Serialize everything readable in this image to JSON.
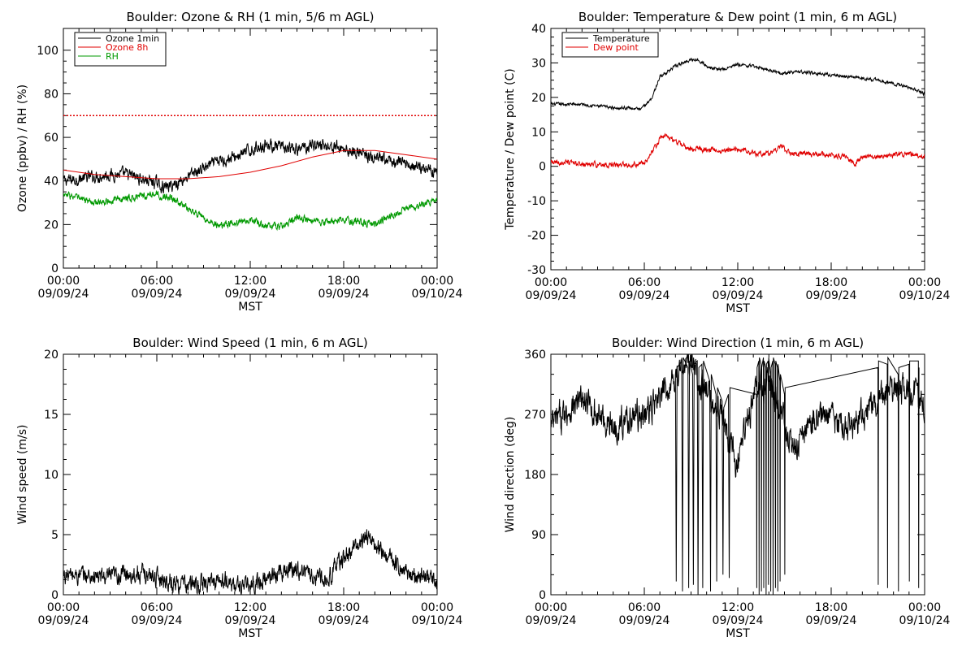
{
  "chart_data": [
    {
      "type": "line",
      "title": "Boulder: Ozone & RH (1 min, 5/6 m AGL)",
      "xlabel": "MST",
      "ylabel": "Ozone (ppbv) / RH (%)",
      "xlim": [
        0,
        24
      ],
      "ylim": [
        0,
        110
      ],
      "yticks": [
        0,
        20,
        40,
        60,
        80,
        100
      ],
      "xticks": [
        {
          "x": 0,
          "time": "00:00",
          "date": "09/09/24"
        },
        {
          "x": 6,
          "time": "06:00",
          "date": "09/09/24"
        },
        {
          "x": 12,
          "time": "12:00",
          "date": "09/09/24"
        },
        {
          "x": 18,
          "time": "18:00",
          "date": "09/09/24"
        },
        {
          "x": 24,
          "time": "00:00",
          "date": "09/10/24"
        }
      ],
      "legend": "top-left",
      "hline": {
        "y": 70,
        "color": "#e00000",
        "style": "dotted"
      },
      "series": [
        {
          "name": "Ozone 1min",
          "color": "#000000",
          "noise": 2.2,
          "x": [
            0,
            1,
            2,
            3,
            4,
            5,
            6,
            6.5,
            7,
            8,
            9,
            10,
            11,
            12,
            13,
            14,
            15,
            16,
            17,
            18,
            19,
            20,
            21,
            22,
            23,
            24
          ],
          "y": [
            40,
            41,
            42,
            43,
            43,
            41,
            39,
            37,
            38,
            42,
            46,
            49,
            51,
            54,
            57,
            55,
            54,
            57,
            56,
            55,
            53,
            50,
            49,
            48,
            46,
            45
          ]
        },
        {
          "name": "Ozone 8h",
          "color": "#e00000",
          "noise": 0,
          "x": [
            0,
            2,
            4,
            6,
            8,
            10,
            12,
            14,
            16,
            18,
            20,
            22,
            24
          ],
          "y": [
            45,
            43,
            42,
            41,
            41,
            42,
            44,
            47,
            51,
            54,
            54,
            52,
            50
          ]
        },
        {
          "name": "RH",
          "color": "#009900",
          "noise": 1.3,
          "x": [
            0,
            1,
            2,
            3,
            4,
            5,
            6,
            7,
            8,
            9,
            10,
            11,
            12,
            13,
            14,
            15,
            16,
            17,
            18,
            19,
            20,
            21,
            22,
            23,
            24
          ],
          "y": [
            34,
            32,
            30,
            31,
            32,
            33,
            34,
            32,
            27,
            23,
            19,
            21,
            22,
            20,
            19,
            23,
            22,
            21,
            22,
            21,
            20,
            24,
            27,
            29,
            31
          ]
        }
      ]
    },
    {
      "type": "line",
      "title": "Boulder: Temperature & Dew point (1 min, 6 m AGL)",
      "xlabel": "MST",
      "ylabel": "Temperature / Dew point (C)",
      "xlim": [
        0,
        24
      ],
      "ylim": [
        -30,
        40
      ],
      "yticks": [
        -30,
        -20,
        -10,
        0,
        10,
        20,
        30,
        40
      ],
      "xticks": [
        {
          "x": 0,
          "time": "00:00",
          "date": "09/09/24"
        },
        {
          "x": 6,
          "time": "06:00",
          "date": "09/09/24"
        },
        {
          "x": 12,
          "time": "12:00",
          "date": "09/09/24"
        },
        {
          "x": 18,
          "time": "18:00",
          "date": "09/09/24"
        },
        {
          "x": 24,
          "time": "00:00",
          "date": "09/10/24"
        }
      ],
      "legend": "top-left",
      "series": [
        {
          "name": "Temperature",
          "color": "#000000",
          "noise": 0.35,
          "x": [
            0,
            1,
            2,
            3,
            4,
            5,
            5.8,
            6.5,
            7,
            8,
            9,
            9.5,
            10,
            11,
            12,
            13,
            14,
            15,
            16,
            17,
            18,
            19,
            20,
            21,
            22,
            23,
            24
          ],
          "y": [
            18,
            18,
            18,
            17.5,
            17,
            17,
            16.5,
            20,
            26,
            29,
            31,
            31,
            29,
            28,
            29.5,
            29,
            28,
            27,
            27.5,
            27,
            26.5,
            26,
            25.5,
            25,
            24,
            23,
            21
          ]
        },
        {
          "name": "Dew point",
          "color": "#e00000",
          "noise": 0.6,
          "x": [
            0,
            1,
            2,
            3,
            4,
            5,
            6,
            6.5,
            7,
            7.5,
            8,
            9,
            10,
            11,
            12,
            13,
            14,
            14.8,
            15.2,
            16,
            17,
            18,
            19,
            19.5,
            20,
            21,
            22,
            23,
            24
          ],
          "y": [
            1,
            1,
            0.5,
            0.5,
            0.5,
            0.5,
            1,
            4,
            8,
            9,
            7,
            5,
            5,
            4.5,
            5,
            4,
            3.5,
            6,
            4,
            3.5,
            3.5,
            3.5,
            2.5,
            1,
            2.5,
            3,
            3.5,
            3.5,
            3
          ]
        }
      ]
    },
    {
      "type": "line",
      "title": "Boulder: Wind Speed (1 min, 6 m AGL)",
      "xlabel": "MST",
      "ylabel": "Wind speed (m/s)",
      "xlim": [
        0,
        24
      ],
      "ylim": [
        0,
        20
      ],
      "yticks": [
        0,
        5,
        10,
        15,
        20
      ],
      "xticks": [
        {
          "x": 0,
          "time": "00:00",
          "date": "09/09/24"
        },
        {
          "x": 6,
          "time": "06:00",
          "date": "09/09/24"
        },
        {
          "x": 12,
          "time": "12:00",
          "date": "09/09/24"
        },
        {
          "x": 18,
          "time": "18:00",
          "date": "09/09/24"
        },
        {
          "x": 24,
          "time": "00:00",
          "date": "09/10/24"
        }
      ],
      "series": [
        {
          "name": "",
          "color": "#000000",
          "noise": 0.6,
          "x": [
            0,
            1,
            2,
            3,
            4,
            5,
            6,
            7,
            8,
            9,
            10,
            11,
            12,
            13,
            14,
            15,
            16,
            17,
            17.5,
            18,
            18.5,
            19,
            19.5,
            20,
            21,
            22,
            23,
            24
          ],
          "y": [
            1.6,
            1.6,
            1.5,
            1.4,
            1.8,
            1.7,
            1.5,
            1.0,
            0.8,
            0.9,
            1.2,
            0.8,
            0.7,
            1.3,
            2.0,
            2.2,
            1.6,
            1.3,
            2.5,
            3.0,
            3.6,
            4.2,
            5.0,
            4.0,
            3.2,
            1.8,
            1.5,
            1.2
          ]
        }
      ]
    },
    {
      "type": "line",
      "title": "Boulder: Wind Direction (1 min, 6 m AGL)",
      "xlabel": "MST",
      "ylabel": "Wind direction (deg)",
      "xlim": [
        0,
        24
      ],
      "ylim": [
        0,
        360
      ],
      "yticks": [
        0,
        90,
        180,
        270,
        360
      ],
      "xticks": [
        {
          "x": 0,
          "time": "00:00",
          "date": "09/09/24"
        },
        {
          "x": 6,
          "time": "06:00",
          "date": "09/09/24"
        },
        {
          "x": 12,
          "time": "12:00",
          "date": "09/09/24"
        },
        {
          "x": 18,
          "time": "18:00",
          "date": "09/09/24"
        },
        {
          "x": 24,
          "time": "00:00",
          "date": "09/10/24"
        }
      ],
      "series": [
        {
          "name": "",
          "color": "#000000",
          "noise": 18,
          "x": [
            0,
            1,
            2,
            3,
            4,
            5,
            6,
            7,
            7.5,
            8,
            9,
            10,
            11,
            11.5,
            12,
            12.5,
            13,
            14,
            15,
            15.5,
            16,
            17,
            18,
            19,
            20,
            21,
            22,
            23,
            24
          ],
          "y": [
            250,
            275,
            290,
            270,
            250,
            265,
            270,
            290,
            310,
            330,
            350,
            300,
            270,
            220,
            190,
            250,
            300,
            320,
            260,
            215,
            225,
            270,
            265,
            250,
            270,
            290,
            300,
            310,
            280
          ]
        },
        {
          "name": "",
          "color": "#000000",
          "noise": 0,
          "x": [
            8.0,
            8.05,
            8.1,
            8.4,
            8.45,
            8.5,
            8.8,
            8.85,
            8.9,
            9.1,
            9.15,
            9.2,
            9.4,
            9.45,
            9.5,
            9.7,
            9.75,
            9.8,
            10.2,
            10.25,
            10.3,
            10.6,
            10.65,
            10.7,
            11.0,
            11.05,
            11.1,
            11.4,
            11.45,
            11.5,
            13.2,
            13.22,
            13.24,
            13.35,
            13.37,
            13.39,
            13.5,
            13.52,
            13.54,
            13.65,
            13.67,
            13.69,
            13.8,
            13.82,
            13.84,
            13.95,
            13.97,
            13.99,
            14.1,
            14.12,
            14.14,
            14.25,
            14.27,
            14.29,
            14.4,
            14.42,
            14.44,
            14.55,
            14.57,
            14.59,
            14.7,
            14.72,
            14.74,
            15.0,
            15.02,
            15.04,
            21.0,
            21.02,
            21.04,
            21.6,
            21.62,
            21.64,
            22.3,
            22.32,
            22.34,
            23.0,
            23.02,
            23.04,
            23.6,
            23.62,
            23.64
          ],
          "y": [
            330,
            20,
            340,
            350,
            5,
            355,
            340,
            10,
            350,
            330,
            15,
            345,
            350,
            0,
            340,
            345,
            10,
            350,
            320,
            5,
            330,
            300,
            20,
            310,
            290,
            30,
            280,
            300,
            25,
            310,
            300,
            10,
            340,
            350,
            0,
            355,
            345,
            5,
            340,
            355,
            10,
            350,
            340,
            0,
            345,
            350,
            15,
            355,
            330,
            5,
            340,
            350,
            0,
            355,
            345,
            10,
            350,
            340,
            5,
            345,
            320,
            20,
            330,
            300,
            30,
            310,
            340,
            15,
            350,
            345,
            10,
            355,
            330,
            5,
            340,
            345,
            20,
            350,
            350,
            10,
            340
          ]
        }
      ]
    }
  ]
}
